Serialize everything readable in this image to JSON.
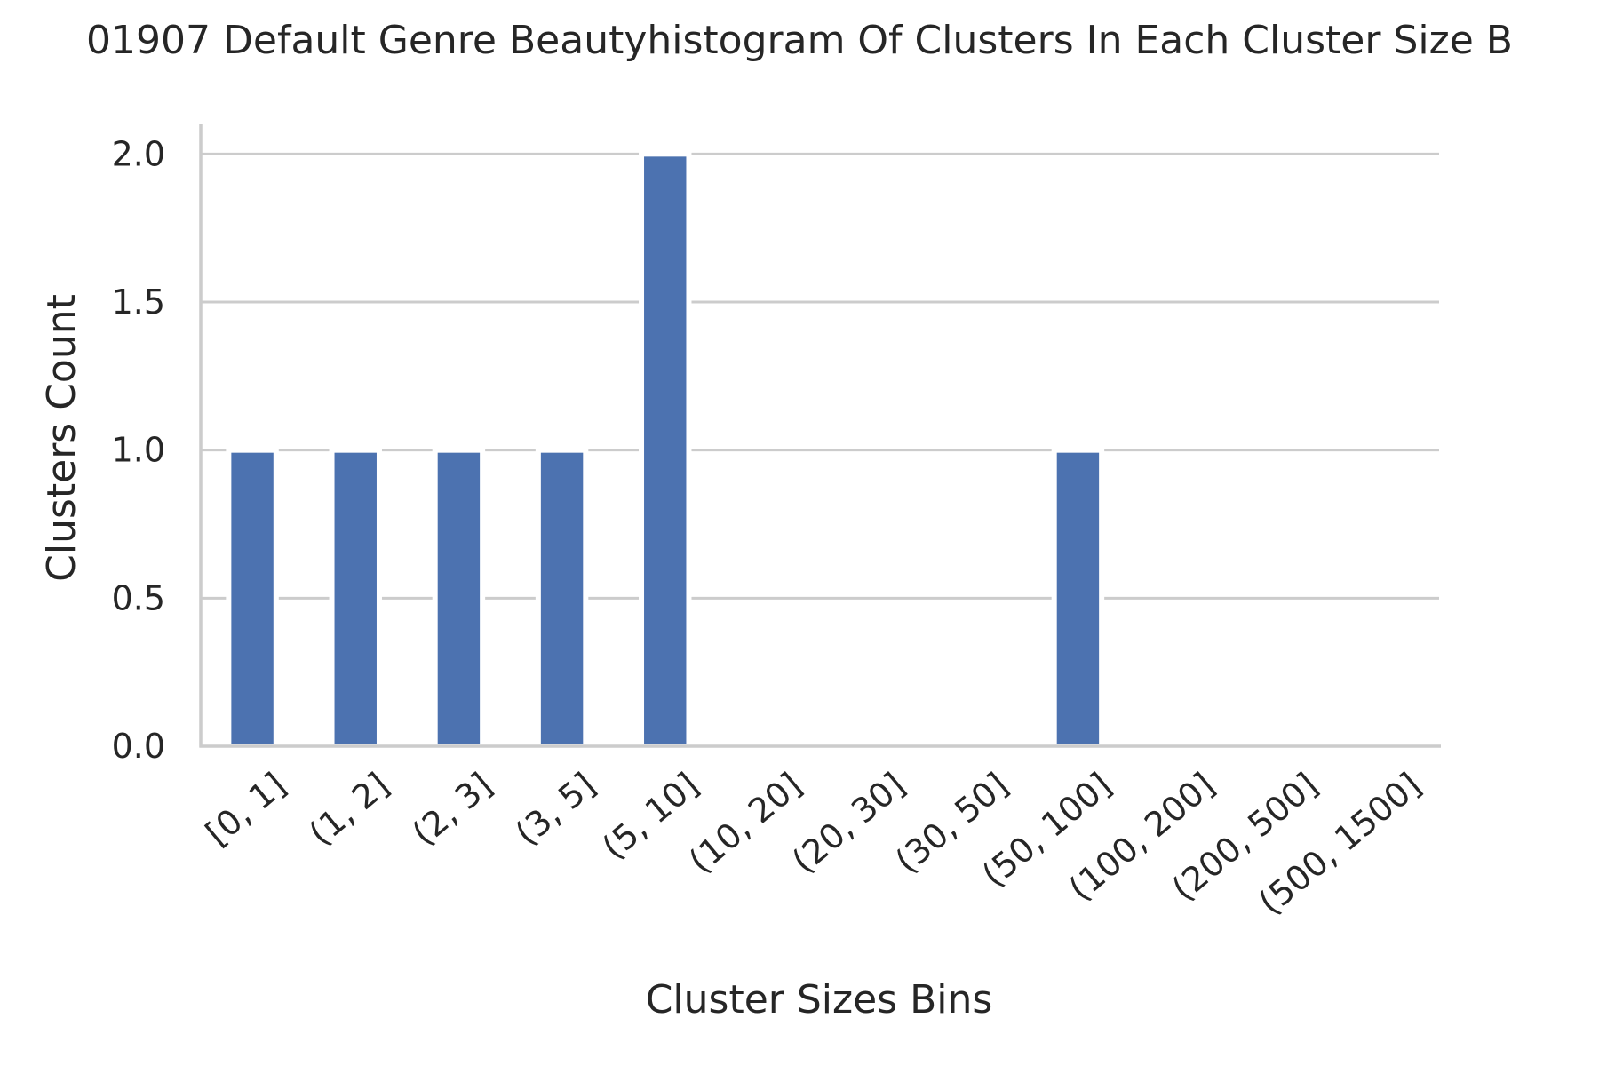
{
  "chart_data": {
    "type": "bar",
    "title": "01907 Default Genre Beautyhistogram Of Clusters In Each Cluster Size B",
    "xlabel": "Cluster Sizes Bins",
    "ylabel": "Clusters Count",
    "categories": [
      "[0, 1]",
      "(1, 2]",
      "(2, 3]",
      "(3, 5]",
      "(5, 10]",
      "(10, 20]",
      "(20, 30]",
      "(30, 50]",
      "(50, 100]",
      "(100, 200]",
      "(200, 500]",
      "(500, 1500]"
    ],
    "values": [
      1,
      1,
      1,
      1,
      2,
      0,
      0,
      0,
      1,
      0,
      0,
      0
    ],
    "ylim": [
      0,
      2.1
    ],
    "yticks": [
      "0.0",
      "0.5",
      "1.0",
      "1.5",
      "2.0"
    ],
    "grid": "horizontal",
    "legend": "none",
    "colors": {
      "bar": "#4c72b0",
      "grid": "#cccccc",
      "text": "#262626",
      "background": "#ffffff"
    }
  }
}
